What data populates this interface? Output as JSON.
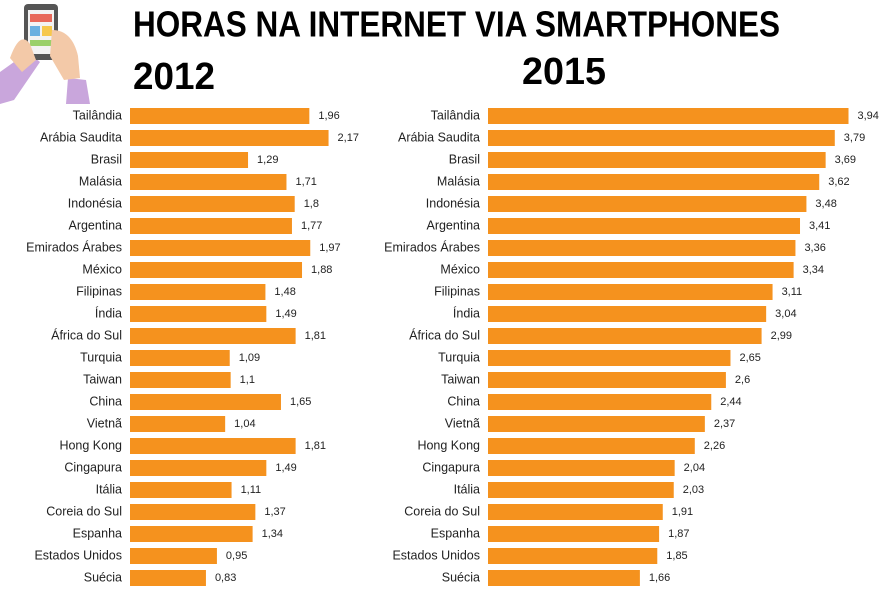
{
  "title": "HORAS NA INTERNET VIA SMARTPHONES",
  "chart_data": [
    {
      "type": "bar",
      "orientation": "horizontal",
      "title": "2012",
      "color": "#f5921e",
      "xlim": [
        0,
        4
      ],
      "categories": [
        "Tailândia",
        "Arábia Saudita",
        "Brasil",
        "Malásia",
        "Indonésia",
        "Argentina",
        "Emirados Árabes",
        "México",
        "Filipinas",
        "Índia",
        "África do Sul",
        "Turquia",
        "Taiwan",
        "China",
        "Vietnã",
        "Hong Kong",
        "Cingapura",
        "Itália",
        "Coreia do Sul",
        "Espanha",
        "Estados Unidos",
        "Suécia"
      ],
      "values": [
        1.96,
        2.17,
        1.29,
        1.71,
        1.8,
        1.77,
        1.97,
        1.88,
        1.48,
        1.49,
        1.81,
        1.09,
        1.1,
        1.65,
        1.04,
        1.81,
        1.49,
        1.11,
        1.37,
        1.34,
        0.95,
        0.83
      ],
      "value_labels": [
        "1,96",
        "2,17",
        "1,29",
        "1,71",
        "1,8",
        "1,77",
        "1,97",
        "1,88",
        "1,48",
        "1,49",
        "1,81",
        "1,09",
        "1,1",
        "1,65",
        "1,04",
        "1,81",
        "1,49",
        "1,11",
        "1,37",
        "1,34",
        "0,95",
        "0,83"
      ]
    },
    {
      "type": "bar",
      "orientation": "horizontal",
      "title": "2015",
      "color": "#f5921e",
      "xlim": [
        0,
        4
      ],
      "categories": [
        "Tailândia",
        "Arábia Saudita",
        "Brasil",
        "Malásia",
        "Indonésia",
        "Argentina",
        "Emirados Árabes",
        "México",
        "Filipinas",
        "Índia",
        "África do Sul",
        "Turquia",
        "Taiwan",
        "China",
        "Vietnã",
        "Hong Kong",
        "Cingapura",
        "Itália",
        "Coreia do Sul",
        "Espanha",
        "Estados Unidos",
        "Suécia"
      ],
      "values": [
        3.94,
        3.79,
        3.69,
        3.62,
        3.48,
        3.41,
        3.36,
        3.34,
        3.11,
        3.04,
        2.99,
        2.65,
        2.6,
        2.44,
        2.37,
        2.26,
        2.04,
        2.03,
        1.91,
        1.87,
        1.85,
        1.66
      ],
      "value_labels": [
        "3,94",
        "3,79",
        "3,69",
        "3,62",
        "3,48",
        "3,41",
        "3,36",
        "3,34",
        "3,11",
        "3,04",
        "2,99",
        "2,65",
        "2,6",
        "2,44",
        "2,37",
        "2,26",
        "2,04",
        "2,03",
        "1,91",
        "1,87",
        "1,85",
        "1,66"
      ]
    }
  ]
}
